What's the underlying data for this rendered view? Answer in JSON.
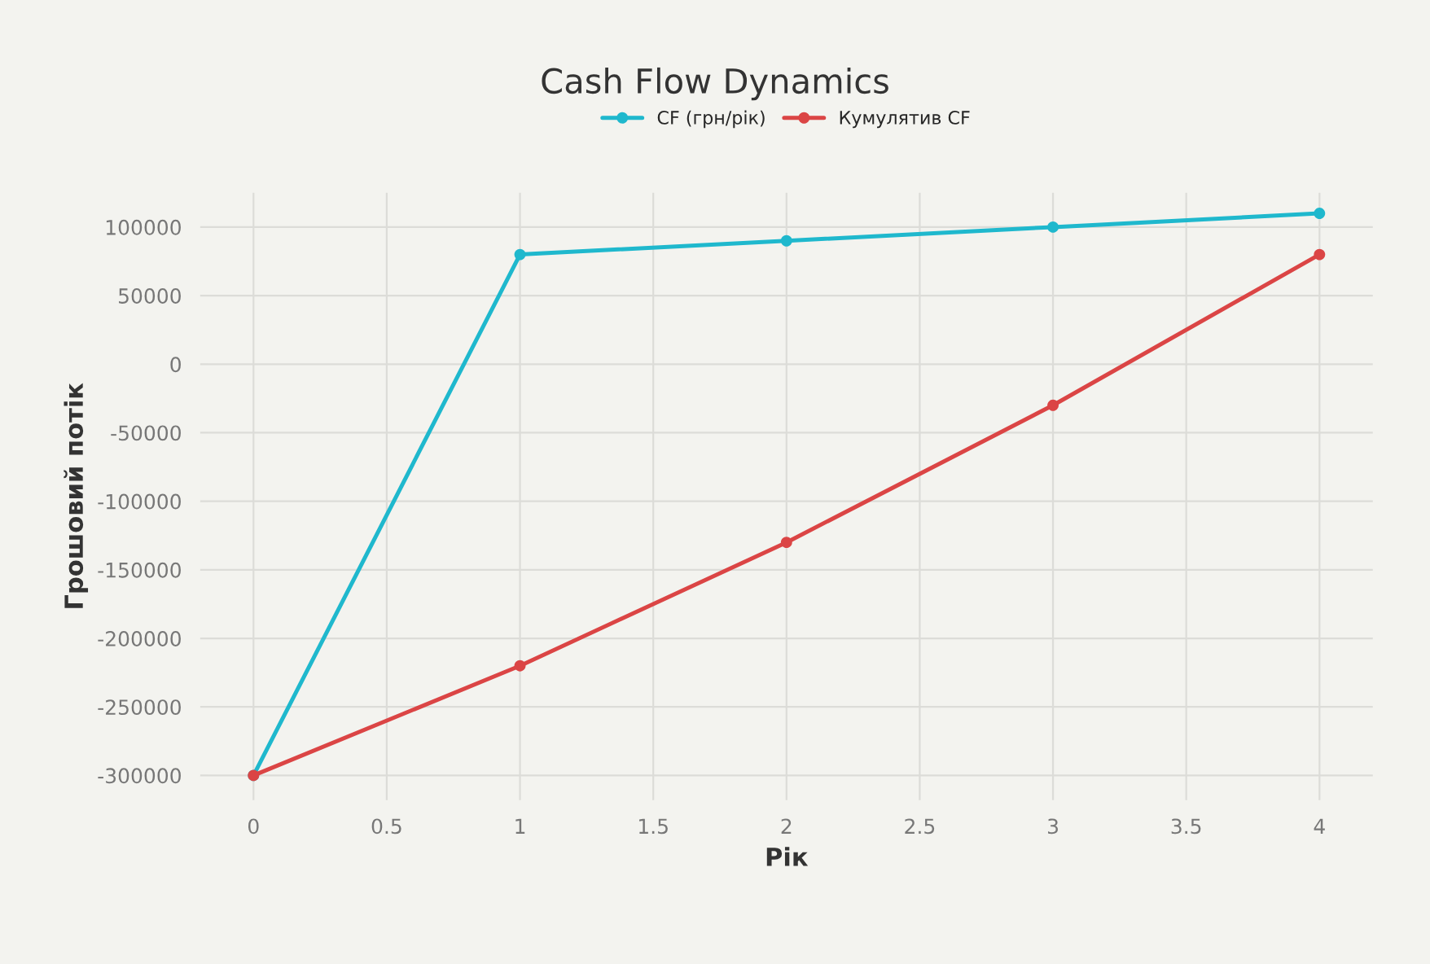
{
  "chart_data": {
    "type": "line",
    "title": "Cash Flow Dynamics",
    "xlabel": "Рік",
    "ylabel": "Грошовий потік",
    "x": [
      0,
      1,
      2,
      3,
      4
    ],
    "series": [
      {
        "name": "CF (грн/рік)",
        "color": "#1fb8cd",
        "values": [
          -300000,
          80000,
          90000,
          100000,
          110000
        ]
      },
      {
        "name": "Кумулятив CF",
        "color": "#db4545",
        "values": [
          -300000,
          -220000,
          -130000,
          -30000,
          80000
        ]
      }
    ],
    "xlim": [
      -0.2,
      4.2
    ],
    "xticks": [
      0,
      0.5,
      1,
      1.5,
      2,
      2.5,
      3,
      3.5,
      4
    ],
    "ylim": [
      -318000,
      125000
    ],
    "yticks": [
      -300000,
      -250000,
      -200000,
      -150000,
      -100000,
      -50000,
      0,
      50000,
      100000
    ],
    "grid": true,
    "legend": "top",
    "marker": "circle",
    "line_style": "solid"
  }
}
